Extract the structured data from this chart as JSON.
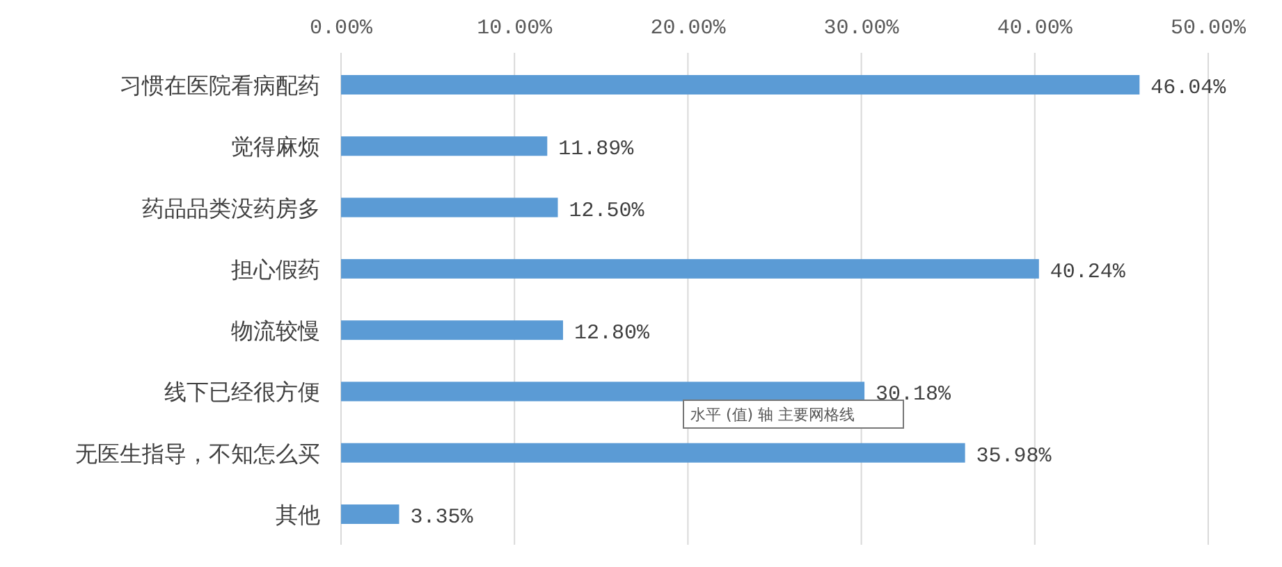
{
  "chart_data": {
    "type": "bar",
    "orientation": "horizontal",
    "categories": [
      "习惯在医院看病配药",
      "觉得麻烦",
      "药品品类没药房多",
      "担心假药",
      "物流较慢",
      "线下已经很方便",
      "无医生指导，不知怎么买",
      "其他"
    ],
    "values": [
      46.04,
      11.89,
      12.5,
      40.24,
      12.8,
      30.18,
      35.98,
      3.35
    ],
    "value_labels": [
      "46.04%",
      "11.89%",
      "12.50%",
      "40.24%",
      "12.80%",
      "30.18%",
      "35.98%",
      "3.35%"
    ],
    "color": "#5b9bd5",
    "xlim": [
      0,
      50
    ],
    "xticks": [
      {
        "value": 0,
        "label": "0.00%"
      },
      {
        "value": 10,
        "label": "10.00%"
      },
      {
        "value": 20,
        "label": "20.00%"
      },
      {
        "value": 30,
        "label": "30.00%"
      },
      {
        "value": 40,
        "label": "40.00%"
      },
      {
        "value": 50,
        "label": "50.00%"
      }
    ],
    "grid": "x",
    "annotations": [
      "水平 (值) 轴 主要网格线"
    ]
  }
}
